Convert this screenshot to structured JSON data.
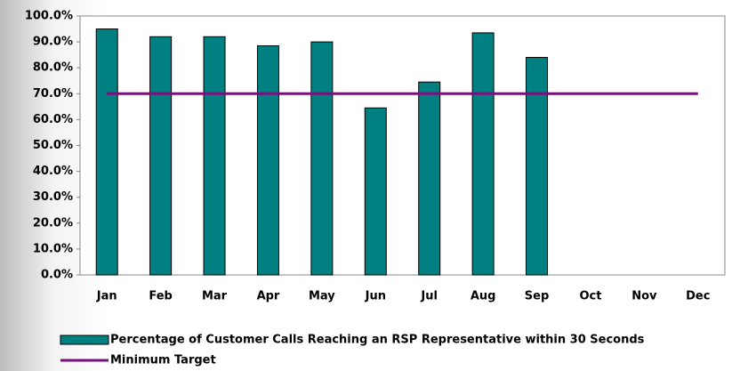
{
  "chart_data": {
    "type": "bar",
    "categories": [
      "Jan",
      "Feb",
      "Mar",
      "Apr",
      "May",
      "Jun",
      "Jul",
      "Aug",
      "Sep",
      "Oct",
      "Nov",
      "Dec"
    ],
    "series": [
      {
        "name": "Percentage of Customer Calls Reaching an RSP Representative within 30 Seconds",
        "type": "bar",
        "color": "#008080",
        "values": [
          95,
          92,
          92,
          88.5,
          90,
          64.5,
          74.5,
          93.5,
          84,
          null,
          null,
          null
        ]
      },
      {
        "name": "Minimum Target",
        "type": "line",
        "color": "#7a0f7e",
        "values": [
          70,
          70,
          70,
          70,
          70,
          70,
          70,
          70,
          70,
          70,
          70,
          70
        ]
      }
    ],
    "ylim": [
      0,
      100
    ],
    "yticks": [
      {
        "value": 0,
        "label": "0.0%"
      },
      {
        "value": 10,
        "label": "10.0%"
      },
      {
        "value": 20,
        "label": "20.0%"
      },
      {
        "value": 30,
        "label": "30.0%"
      },
      {
        "value": 40,
        "label": "40.0%"
      },
      {
        "value": 50,
        "label": "50.0%"
      },
      {
        "value": 60,
        "label": "60.0%"
      },
      {
        "value": 70,
        "label": "70.0%"
      },
      {
        "value": 80,
        "label": "80.0%"
      },
      {
        "value": 90,
        "label": "90.0%"
      },
      {
        "value": 100,
        "label": "100.0%"
      }
    ],
    "grid": false,
    "legend": "bottom"
  }
}
